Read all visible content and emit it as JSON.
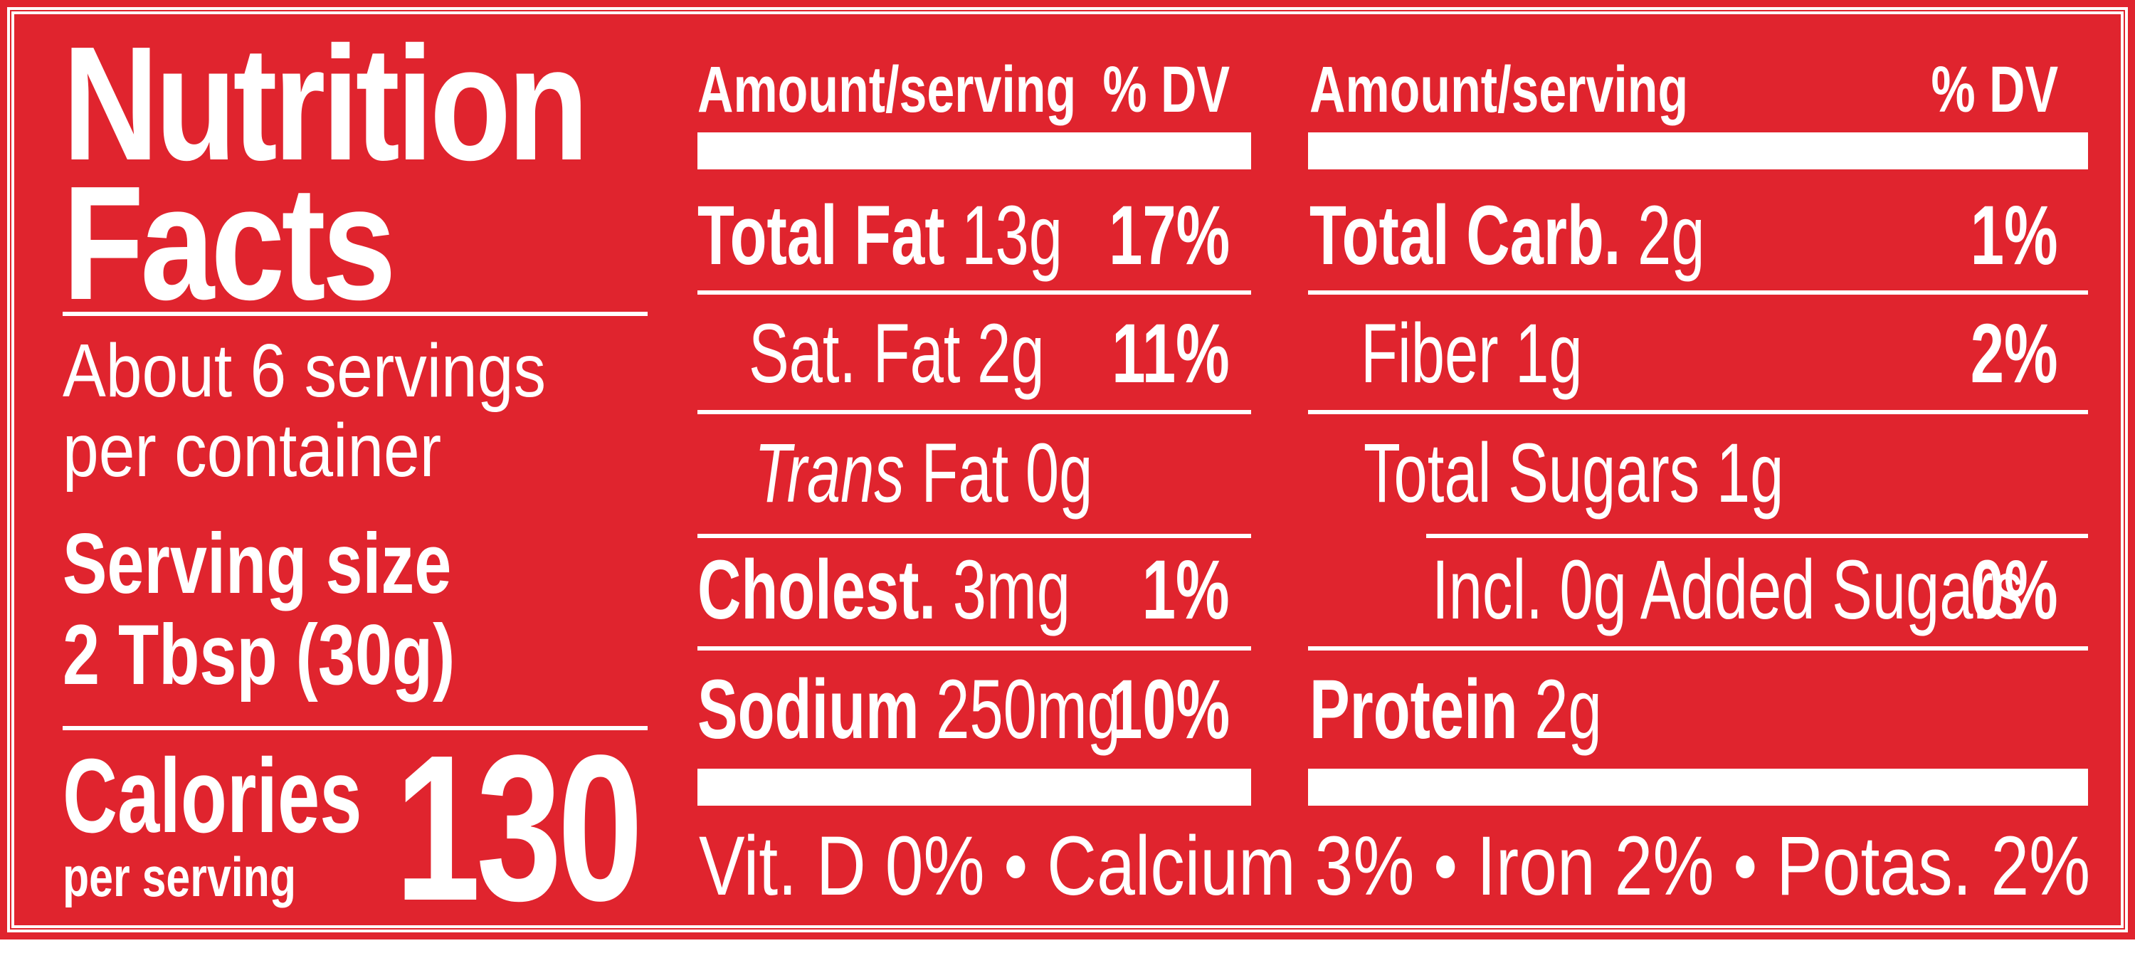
{
  "title_line1": "Nutrition",
  "title_line2": "Facts",
  "servings_line1": "About 6 servings",
  "servings_line2": "per container",
  "serving_size_label": "Serving size",
  "serving_size_value": "2 Tbsp (30g)",
  "calories_label": "Calories",
  "calories_sub": "per serving",
  "calories_value": "130",
  "left_table": {
    "header_amount": "Amount/serving",
    "header_dv": "% DV",
    "total_fat_label": "Total Fat",
    "total_fat_amount": "13g",
    "total_fat_dv": "17%",
    "sat_fat": "Sat. Fat 2g",
    "sat_fat_dv": "11%",
    "trans_italic": "Trans",
    "trans_rest": "Fat 0g",
    "cholest_label": "Cholest.",
    "cholest_amount": "3mg",
    "cholest_dv": "1%",
    "sodium_label": "Sodium",
    "sodium_amount": "250mg",
    "sodium_dv": "10%"
  },
  "right_table": {
    "header_amount": "Amount/serving",
    "header_dv": "% DV",
    "carb_label": "Total Carb.",
    "carb_amount": "2g",
    "carb_dv": "1%",
    "fiber": "Fiber 1g",
    "fiber_dv": "2%",
    "sugars": "Total Sugars 1g",
    "added_sugars": "Incl. 0g Added Sugars",
    "added_sugars_dv": "0%",
    "protein_label": "Protein",
    "protein_amount": "2g"
  },
  "footer": "Vit. D 0% • Calcium 3% • Iron 2% • Potas. 2%",
  "colors": {
    "background": "#e0242e",
    "text": "#ffffff"
  }
}
